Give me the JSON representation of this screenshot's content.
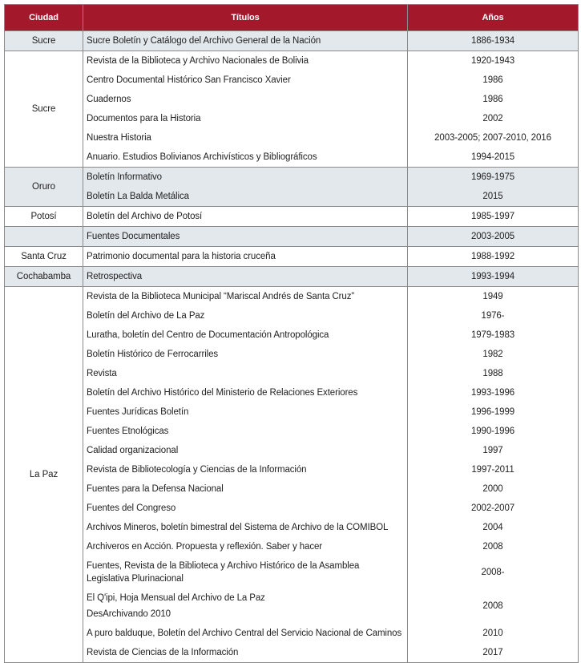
{
  "table": {
    "headers": [
      "Ciudad",
      "Títulos",
      "Años"
    ],
    "groups": [
      {
        "city": "Sucre",
        "rows": [
          {
            "titles": [
              "Sucre Boletín y Catálogo del Archivo General de la Nación"
            ],
            "years": "1886-1934"
          }
        ]
      },
      {
        "city": "Sucre",
        "rows": [
          {
            "titles": [
              "Revista de la Biblioteca y Archivo Nacionales de Bolivia"
            ],
            "years": "1920-1943"
          },
          {
            "titles": [
              "Centro Documental Histórico San Francisco Xavier"
            ],
            "years": "1986"
          },
          {
            "titles": [
              "Cuadernos"
            ],
            "years": "1986"
          },
          {
            "titles": [
              "Documentos para la Historia"
            ],
            "years": "2002"
          },
          {
            "titles": [
              "Nuestra Historia"
            ],
            "years": "2003-2005; 2007-2010, 2016"
          },
          {
            "titles": [
              "Anuario. Estudios Bolivianos Archivísticos y Bibliográficos"
            ],
            "years": "1994-2015"
          }
        ]
      },
      {
        "city": "Oruro",
        "rows": [
          {
            "titles": [
              "Boletín Informativo"
            ],
            "years": "1969-1975"
          },
          {
            "titles": [
              "Boletín La Balda Metálica"
            ],
            "years": "2015"
          }
        ]
      },
      {
        "city": "Potosí",
        "rows": [
          {
            "titles": [
              "Boletín del Archivo de Potosí"
            ],
            "years": "1985-1997"
          }
        ]
      },
      {
        "rows": [
          {
            "titles": [
              "Fuentes Documentales"
            ],
            "years": "2003-2005"
          }
        ]
      },
      {
        "city": "Santa Cruz",
        "rows": [
          {
            "titles": [
              "Patrimonio documental para la historia cruceña"
            ],
            "years": "1988-1992"
          }
        ]
      },
      {
        "city": "Cochabamba",
        "rows": [
          {
            "titles": [
              "Retrospectiva"
            ],
            "years": "1993-1994"
          }
        ]
      },
      {
        "city": "La Paz",
        "rows": [
          {
            "titles": [
              "Revista de la Biblioteca Municipal “Mariscal Andrés de Santa Cruz”"
            ],
            "years": "1949"
          },
          {
            "titles": [
              "Boletín del Archivo de La Paz"
            ],
            "years": "1976-"
          },
          {
            "titles": [
              "Luratha, boletín del Centro de Documentación Antropológica"
            ],
            "years": "1979-1983"
          },
          {
            "titles": [
              "Boletín Histórico de Ferrocarriles"
            ],
            "years": "1982"
          },
          {
            "titles": [
              "Revista"
            ],
            "years": "1988"
          },
          {
            "titles": [
              "Boletín del Archivo Histórico del Ministerio de Relaciones Exteriores"
            ],
            "years": "1993-1996"
          },
          {
            "titles": [
              "Fuentes Jurídicas Boletín"
            ],
            "years": "1996-1999"
          },
          {
            "titles": [
              "Fuentes Etnológicas"
            ],
            "years": "1990-1996"
          },
          {
            "titles": [
              "Calidad organizacional"
            ],
            "years": "1997"
          },
          {
            "titles": [
              "Revista de Bibliotecología y Ciencias de la Información"
            ],
            "years": "1997-2011"
          },
          {
            "titles": [
              "Fuentes para la Defensa Nacional"
            ],
            "years": "2000"
          },
          {
            "titles": [
              "Fuentes del Congreso"
            ],
            "years": "2002-2007"
          },
          {
            "titles": [
              "Archivos Mineros, boletín bimestral del Sistema de Archivo de la COMIBOL"
            ],
            "years": "2004"
          },
          {
            "titles": [
              "Archiveros en Acción. Propuesta y reflexión. Saber y hacer"
            ],
            "years": "2008"
          },
          {
            "titles": [
              "Fuentes, Revista de la Biblioteca y Archivo Histórico de la Asamblea Legislativa Plurinacional"
            ],
            "years": "2008-"
          },
          {
            "titles": [
              "El Q'ipi, Hoja Mensual del Archivo de La Paz",
              "DesArchivando 2010"
            ],
            "years": "2008"
          },
          {
            "titles": [
              "A puro balduque, Boletín del Archivo Central del Servicio Nacional de Caminos"
            ],
            "years": "2010"
          },
          {
            "titles": [
              "Revista de Ciencias de la Información"
            ],
            "years": "2017"
          }
        ]
      }
    ]
  }
}
